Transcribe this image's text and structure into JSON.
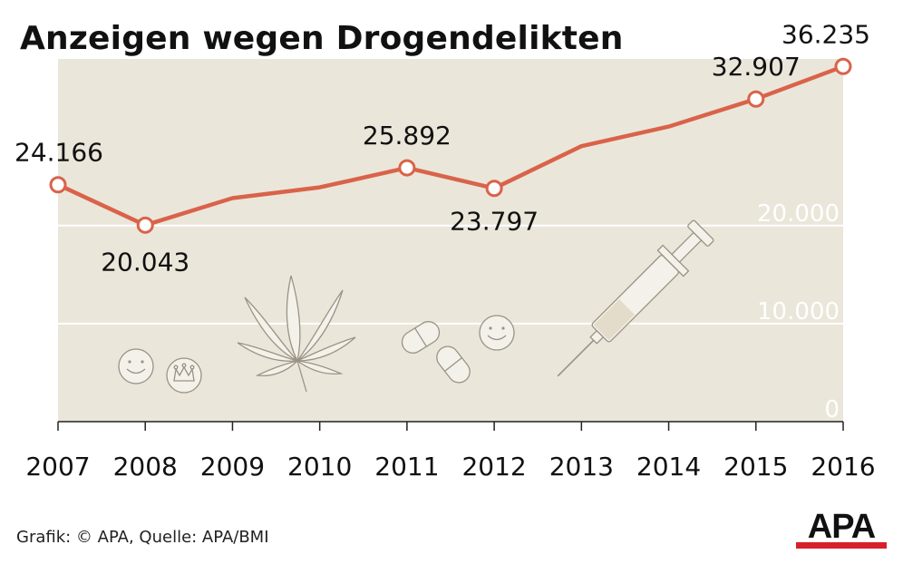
{
  "title": "Anzeigen wegen Drogendelikten",
  "source": "Grafik: © APA, Quelle: APA/BMI",
  "logo_text": "APA",
  "colors": {
    "line": "#d9634a",
    "plot_bg": "#ebe6da",
    "grid": "#ffffff",
    "tick_label": "#ffffff",
    "icon": "#f4f1ea",
    "icon_stroke": "#9a9385",
    "logo_bar": "#d8202b"
  },
  "chart_data": {
    "type": "line",
    "title": "Anzeigen wegen Drogendelikten",
    "xlabel": "",
    "ylabel": "",
    "x": [
      "2007",
      "2008",
      "2009",
      "2010",
      "2011",
      "2012",
      "2013",
      "2014",
      "2015",
      "2016"
    ],
    "series": [
      {
        "values": [
          24166,
          20043,
          22800,
          23900,
          25892,
          23797,
          28100,
          30100,
          32907,
          36235
        ]
      }
    ],
    "marked_points": [
      0,
      1,
      4,
      5,
      8,
      9
    ],
    "data_labels": [
      "24.166",
      "20.043",
      "25.892",
      "23.797",
      "32.907",
      "36.235"
    ],
    "ylim": [
      0,
      37000
    ],
    "yticks": [
      0,
      10000,
      20000
    ],
    "ytick_labels": [
      "0",
      "10.000",
      "20.000"
    ],
    "grid": true,
    "legend": "none",
    "decorations": [
      "smiley-pill-icon",
      "crown-pill-icon",
      "cannabis-leaf-icon",
      "capsule-icon",
      "capsule-icon",
      "smiley-pill-icon",
      "syringe-icon"
    ]
  }
}
